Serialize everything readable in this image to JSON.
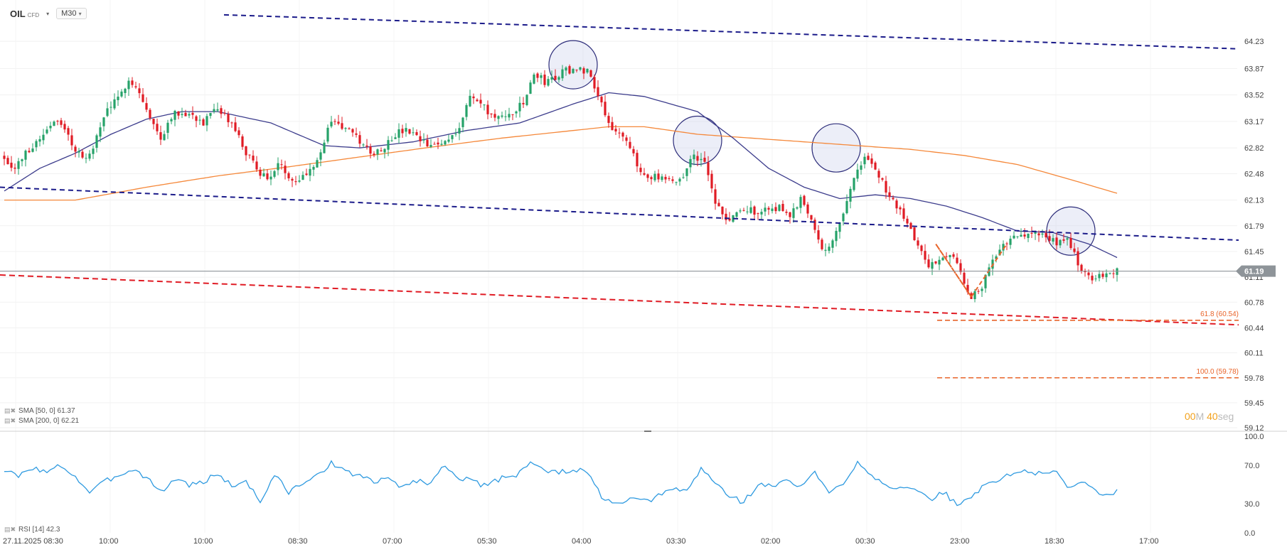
{
  "header": {
    "symbol": "OIL",
    "symbol_type": "CFD",
    "timeframe": "M30"
  },
  "legend": {
    "sma50": {
      "text": "SMA [50, 0] 61.37"
    },
    "sma200": {
      "text": "SMA [200, 0] 62.21"
    },
    "rsi": {
      "text": "RSI [14] 42.3"
    }
  },
  "countdown": {
    "min": "00",
    "min_unit": "M",
    "sec": "40",
    "sec_unit": "seg"
  },
  "colors": {
    "up": "#26a269",
    "down": "#e01b24",
    "sma50": "#3c3c8c",
    "sma200": "#f5883a",
    "channel_upper": "#1b1b8a",
    "channel_lower": "#1b1b8a",
    "support": "#e01b24",
    "fib": "#e8642a",
    "rsi": "#2e9ae0",
    "price_tag": "#8e9499"
  },
  "chart_data": [
    {
      "type": "candlestick",
      "title": "",
      "ylim": [
        59.12,
        64.4
      ],
      "y_ticks": [
        64.23,
        63.87,
        63.52,
        63.17,
        62.82,
        62.48,
        62.13,
        61.79,
        61.45,
        61.11,
        60.78,
        60.44,
        60.11,
        59.78,
        59.45,
        59.12
      ],
      "x_ticks": [
        "27.11.2025 08:30",
        "10:00",
        "10:00",
        "08:30",
        "07:00",
        "05:30",
        "04:00",
        "03:30",
        "02:00",
        "00:30",
        "23:00",
        "18:30",
        "17:00"
      ],
      "last_price": 61.19,
      "close_anchors": [
        [
          0,
          62.7
        ],
        [
          3,
          62.55
        ],
        [
          6,
          62.75
        ],
        [
          10,
          62.95
        ],
        [
          14,
          63.2
        ],
        [
          17,
          63.05
        ],
        [
          20,
          62.8
        ],
        [
          23,
          62.65
        ],
        [
          26,
          62.95
        ],
        [
          29,
          63.35
        ],
        [
          32,
          63.45
        ],
        [
          35,
          63.75
        ],
        [
          38,
          63.55
        ],
        [
          41,
          63.2
        ],
        [
          44,
          62.95
        ],
        [
          47,
          63.25
        ],
        [
          50,
          63.3
        ],
        [
          53,
          63.25
        ],
        [
          56,
          63.15
        ],
        [
          59,
          63.3
        ],
        [
          62,
          63.25
        ],
        [
          65,
          63.05
        ],
        [
          68,
          62.75
        ],
        [
          71,
          62.55
        ],
        [
          74,
          62.4
        ],
        [
          77,
          62.6
        ],
        [
          80,
          62.45
        ],
        [
          83,
          62.4
        ],
        [
          86,
          62.55
        ],
        [
          89,
          62.75
        ],
        [
          92,
          63.2
        ],
        [
          95,
          63.1
        ],
        [
          98,
          63.0
        ],
        [
          101,
          62.85
        ],
        [
          104,
          62.75
        ],
        [
          107,
          62.85
        ],
        [
          110,
          63.0
        ],
        [
          113,
          63.05
        ],
        [
          116,
          62.95
        ],
        [
          119,
          62.85
        ],
        [
          122,
          62.85
        ],
        [
          125,
          62.95
        ],
        [
          128,
          63.1
        ],
        [
          131,
          63.5
        ],
        [
          134,
          63.4
        ],
        [
          137,
          63.25
        ],
        [
          140,
          63.2
        ],
        [
          143,
          63.3
        ],
        [
          146,
          63.4
        ],
        [
          149,
          63.8
        ],
        [
          152,
          63.7
        ],
        [
          155,
          63.75
        ],
        [
          158,
          63.85
        ],
        [
          161,
          63.85
        ],
        [
          164,
          63.85
        ],
        [
          167,
          63.55
        ],
        [
          170,
          63.15
        ],
        [
          173,
          63.0
        ],
        [
          176,
          62.8
        ],
        [
          179,
          62.5
        ],
        [
          182,
          62.45
        ],
        [
          185,
          62.4
        ],
        [
          188,
          62.35
        ],
        [
          191,
          62.45
        ],
        [
          194,
          62.75
        ],
        [
          197,
          62.6
        ],
        [
          200,
          62.1
        ],
        [
          203,
          61.85
        ],
        [
          206,
          61.95
        ],
        [
          209,
          62.0
        ],
        [
          212,
          61.98
        ],
        [
          215,
          62.0
        ],
        [
          218,
          62.05
        ],
        [
          221,
          61.9
        ],
        [
          224,
          62.15
        ],
        [
          227,
          61.9
        ],
        [
          230,
          61.5
        ],
        [
          233,
          61.55
        ],
        [
          236,
          62.0
        ],
        [
          239,
          62.4
        ],
        [
          242,
          62.7
        ],
        [
          245,
          62.55
        ],
        [
          248,
          62.25
        ],
        [
          251,
          62.05
        ],
        [
          254,
          61.8
        ],
        [
          257,
          61.55
        ],
        [
          260,
          61.25
        ],
        [
          263,
          61.35
        ],
        [
          266,
          61.45
        ],
        [
          269,
          61.15
        ],
        [
          272,
          60.85
        ],
        [
          275,
          61.0
        ],
        [
          278,
          61.3
        ],
        [
          281,
          61.55
        ],
        [
          284,
          61.7
        ],
        [
          287,
          61.65
        ],
        [
          290,
          61.7
        ],
        [
          293,
          61.65
        ],
        [
          296,
          61.55
        ],
        [
          299,
          61.6
        ],
        [
          302,
          61.3
        ],
        [
          305,
          61.1
        ],
        [
          308,
          61.15
        ],
        [
          311,
          61.18
        ],
        [
          313,
          61.19
        ]
      ],
      "sma200": [
        [
          0,
          62.13
        ],
        [
          20,
          62.13
        ],
        [
          40,
          62.3
        ],
        [
          60,
          62.45
        ],
        [
          80,
          62.57
        ],
        [
          100,
          62.7
        ],
        [
          120,
          62.83
        ],
        [
          140,
          62.95
        ],
        [
          160,
          63.05
        ],
        [
          170,
          63.1
        ],
        [
          180,
          63.1
        ],
        [
          195,
          63.0
        ],
        [
          210,
          62.95
        ],
        [
          225,
          62.9
        ],
        [
          240,
          62.85
        ],
        [
          255,
          62.8
        ],
        [
          270,
          62.72
        ],
        [
          285,
          62.6
        ],
        [
          300,
          62.4
        ],
        [
          313,
          62.22
        ]
      ],
      "sma50": [
        [
          0,
          62.25
        ],
        [
          10,
          62.55
        ],
        [
          20,
          62.75
        ],
        [
          30,
          63.0
        ],
        [
          40,
          63.2
        ],
        [
          50,
          63.3
        ],
        [
          60,
          63.3
        ],
        [
          75,
          63.15
        ],
        [
          90,
          62.85
        ],
        [
          100,
          62.82
        ],
        [
          115,
          62.9
        ],
        [
          130,
          63.05
        ],
        [
          145,
          63.15
        ],
        [
          160,
          63.4
        ],
        [
          170,
          63.55
        ],
        [
          180,
          63.5
        ],
        [
          195,
          63.3
        ],
        [
          205,
          62.95
        ],
        [
          215,
          62.55
        ],
        [
          225,
          62.3
        ],
        [
          235,
          62.15
        ],
        [
          245,
          62.2
        ],
        [
          255,
          62.15
        ],
        [
          265,
          62.05
        ],
        [
          275,
          61.9
        ],
        [
          285,
          61.72
        ],
        [
          295,
          61.7
        ],
        [
          305,
          61.55
        ],
        [
          313,
          61.37
        ]
      ],
      "trendlines": {
        "channel_upper": [
          [
            64.58,
            64.13
          ]
        ],
        "channel_lower": [
          [
            62.3,
            61.6
          ]
        ],
        "support": [
          [
            61.14,
            60.48
          ]
        ]
      },
      "fib_levels": [
        {
          "text": "61.8 (60.54)",
          "value": 60.54
        },
        {
          "text": "100.0 (59.78)",
          "value": 59.78
        }
      ],
      "circles": [
        {
          "bar": 160,
          "price": 63.92
        },
        {
          "bar": 195,
          "price": 62.92
        },
        {
          "bar": 234,
          "price": 62.82
        },
        {
          "bar": 300,
          "price": 61.72
        }
      ]
    },
    {
      "type": "line",
      "title": "",
      "ylim": [
        0,
        100
      ],
      "y_ticks": [
        "100.0",
        "70.0",
        "30.0",
        "0.0"
      ],
      "rsi_anchors": [
        [
          0,
          65
        ],
        [
          4,
          58
        ],
        [
          8,
          68
        ],
        [
          12,
          62
        ],
        [
          16,
          70
        ],
        [
          20,
          58
        ],
        [
          24,
          42
        ],
        [
          28,
          52
        ],
        [
          32,
          60
        ],
        [
          36,
          66
        ],
        [
          40,
          58
        ],
        [
          44,
          42
        ],
        [
          48,
          56
        ],
        [
          52,
          50
        ],
        [
          56,
          52
        ],
        [
          60,
          62
        ],
        [
          64,
          48
        ],
        [
          68,
          54
        ],
        [
          72,
          32
        ],
        [
          76,
          60
        ],
        [
          80,
          42
        ],
        [
          84,
          52
        ],
        [
          88,
          58
        ],
        [
          92,
          74
        ],
        [
          96,
          62
        ],
        [
          100,
          60
        ],
        [
          104,
          52
        ],
        [
          108,
          56
        ],
        [
          112,
          48
        ],
        [
          116,
          54
        ],
        [
          120,
          52
        ],
        [
          124,
          70
        ],
        [
          128,
          58
        ],
        [
          132,
          52
        ],
        [
          136,
          48
        ],
        [
          140,
          58
        ],
        [
          144,
          60
        ],
        [
          148,
          74
        ],
        [
          152,
          64
        ],
        [
          156,
          62
        ],
        [
          160,
          66
        ],
        [
          164,
          62
        ],
        [
          168,
          38
        ],
        [
          172,
          28
        ],
        [
          176,
          35
        ],
        [
          180,
          32
        ],
        [
          184,
          38
        ],
        [
          188,
          45
        ],
        [
          192,
          44
        ],
        [
          196,
          66
        ],
        [
          200,
          52
        ],
        [
          204,
          38
        ],
        [
          208,
          32
        ],
        [
          212,
          50
        ],
        [
          216,
          48
        ],
        [
          220,
          54
        ],
        [
          224,
          48
        ],
        [
          228,
          62
        ],
        [
          232,
          40
        ],
        [
          236,
          52
        ],
        [
          240,
          74
        ],
        [
          244,
          60
        ],
        [
          248,
          50
        ],
        [
          252,
          46
        ],
        [
          256,
          44
        ],
        [
          260,
          34
        ],
        [
          264,
          42
        ],
        [
          268,
          30
        ],
        [
          272,
          36
        ],
        [
          276,
          50
        ],
        [
          280,
          56
        ],
        [
          284,
          62
        ],
        [
          288,
          64
        ],
        [
          292,
          60
        ],
        [
          296,
          64
        ],
        [
          300,
          45
        ],
        [
          304,
          54
        ],
        [
          308,
          40
        ],
        [
          313,
          42
        ]
      ]
    }
  ]
}
